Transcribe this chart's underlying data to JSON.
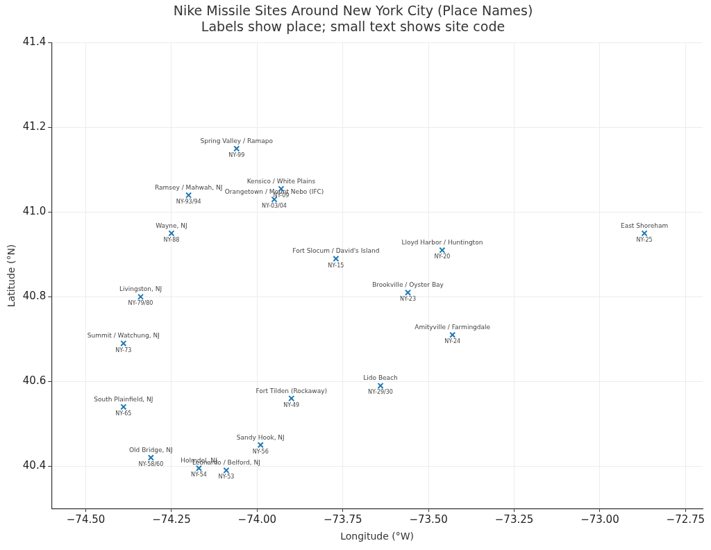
{
  "chart_data": {
    "type": "scatter",
    "title": "Nike Missile Sites Around New York City (Place Names)",
    "subtitle": "Labels show place; small text shows site code",
    "xlabel": "Longitude (°W)",
    "ylabel": "Latitude (°N)",
    "x": [
      -74.06,
      -73.93,
      -73.95,
      -74.2,
      -74.25,
      -74.34,
      -74.39,
      -74.39,
      -74.31,
      -74.17,
      -74.09,
      -73.99,
      -73.9,
      -73.64,
      -73.77,
      -73.46,
      -73.56,
      -73.43,
      -72.87
    ],
    "series": [
      {
        "color": "#1f77b4",
        "values": [
          41.15,
          41.055,
          41.03,
          41.04,
          40.95,
          40.8,
          40.69,
          40.54,
          40.42,
          40.395,
          40.39,
          40.45,
          40.56,
          40.59,
          40.89,
          40.91,
          40.81,
          40.71,
          40.95
        ]
      }
    ],
    "marker": "cross",
    "grid": true,
    "legend": false,
    "xlim": [
      -74.6,
      -72.7
    ],
    "ylim": [
      40.3,
      41.4
    ],
    "xticks": [
      {
        "value": -74.5,
        "label": "−74.50"
      },
      {
        "value": -74.25,
        "label": "−74.25"
      },
      {
        "value": -74,
        "label": "−74.00"
      },
      {
        "value": -73.75,
        "label": "−73.75"
      },
      {
        "value": -73.5,
        "label": "−73.50"
      },
      {
        "value": -73.25,
        "label": "−73.25"
      },
      {
        "value": -73,
        "label": "−73.00"
      },
      {
        "value": -72.75,
        "label": "−72.75"
      }
    ],
    "yticks": [
      {
        "value": 40.4,
        "label": "40.4"
      },
      {
        "value": 40.6,
        "label": "40.6"
      },
      {
        "value": 40.8,
        "label": "40.8"
      },
      {
        "value": 41,
        "label": "41.0"
      },
      {
        "value": 41.2,
        "label": "41.2"
      },
      {
        "value": 41.4,
        "label": "41.4"
      }
    ],
    "annotations": [
      {
        "text": "Spring Valley / Ramapo",
        "x": -74.06,
        "y": 41.15
      },
      {
        "text": "NY-99",
        "x": -74.06,
        "y": 41.15
      },
      {
        "text": "Kensico / White Plains",
        "x": -73.93,
        "y": 41.055
      },
      {
        "text": "NY-09",
        "x": -73.93,
        "y": 41.055
      },
      {
        "text": "Orangetown / Mount Nebo (IFC)",
        "x": -73.95,
        "y": 41.03
      },
      {
        "text": "NY-03/04",
        "x": -73.95,
        "y": 41.03
      },
      {
        "text": "Ramsey / Mahwah, NJ",
        "x": -74.2,
        "y": 41.04
      },
      {
        "text": "NY-93/94",
        "x": -74.2,
        "y": 41.04
      },
      {
        "text": "Wayne, NJ",
        "x": -74.25,
        "y": 40.95
      },
      {
        "text": "NY-88",
        "x": -74.25,
        "y": 40.95
      },
      {
        "text": "Livingston, NJ",
        "x": -74.34,
        "y": 40.8
      },
      {
        "text": "NY-79/80",
        "x": -74.34,
        "y": 40.8
      },
      {
        "text": "Summit / Watchung, NJ",
        "x": -74.39,
        "y": 40.69
      },
      {
        "text": "NY-73",
        "x": -74.39,
        "y": 40.69
      },
      {
        "text": "South Plainfield, NJ",
        "x": -74.39,
        "y": 40.54
      },
      {
        "text": "NY-65",
        "x": -74.39,
        "y": 40.54
      },
      {
        "text": "Old Bridge, NJ",
        "x": -74.31,
        "y": 40.42
      },
      {
        "text": "NY-58/60",
        "x": -74.31,
        "y": 40.42
      },
      {
        "text": "Holmdel, NJ",
        "x": -74.17,
        "y": 40.395
      },
      {
        "text": "NY-54",
        "x": -74.17,
        "y": 40.395
      },
      {
        "text": "Leonardo / Belford, NJ",
        "x": -74.09,
        "y": 40.39
      },
      {
        "text": "NY-53",
        "x": -74.09,
        "y": 40.39
      },
      {
        "text": "Sandy Hook, NJ",
        "x": -73.99,
        "y": 40.45
      },
      {
        "text": "NY-56",
        "x": -73.99,
        "y": 40.45
      },
      {
        "text": "Fort Tilden (Rockaway)",
        "x": -73.9,
        "y": 40.56
      },
      {
        "text": "NY-49",
        "x": -73.9,
        "y": 40.56
      },
      {
        "text": "Lido Beach",
        "x": -73.64,
        "y": 40.59
      },
      {
        "text": "NY-29/30",
        "x": -73.64,
        "y": 40.59
      },
      {
        "text": "Fort Slocum / David's Island",
        "x": -73.77,
        "y": 40.89
      },
      {
        "text": "NY-15",
        "x": -73.77,
        "y": 40.89
      },
      {
        "text": "Lloyd Harbor / Huntington",
        "x": -73.46,
        "y": 40.91
      },
      {
        "text": "NY-20",
        "x": -73.46,
        "y": 40.91
      },
      {
        "text": "Brookville / Oyster Bay",
        "x": -73.56,
        "y": 40.81
      },
      {
        "text": "NY-23",
        "x": -73.56,
        "y": 40.81
      },
      {
        "text": "Amityville / Farmingdale",
        "x": -73.43,
        "y": 40.71
      },
      {
        "text": "NY-24",
        "x": -73.43,
        "y": 40.71
      },
      {
        "text": "East Shoreham",
        "x": -72.87,
        "y": 40.95
      },
      {
        "text": "NY-25",
        "x": -72.87,
        "y": 40.95
      }
    ]
  }
}
